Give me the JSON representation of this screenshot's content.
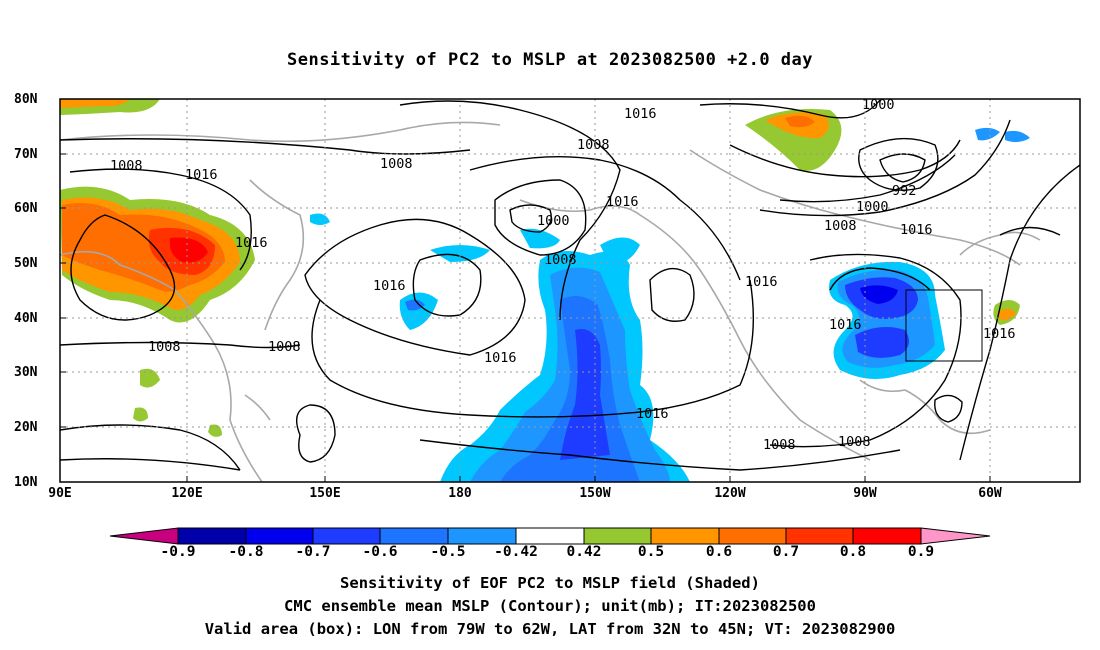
{
  "title": "Sensitivity of PC2 to MSLP at 2023082500 +2.0 day",
  "axes": {
    "lat_labels": [
      "80N",
      "70N",
      "60N",
      "50N",
      "40N",
      "30N",
      "20N",
      "10N"
    ],
    "lon_labels": [
      "90E",
      "120E",
      "150E",
      "180",
      "150W",
      "120W",
      "90W",
      "60W"
    ]
  },
  "colorbar": {
    "labels": [
      "-0.9",
      "-0.8",
      "-0.7",
      "-0.6",
      "-0.5",
      "-0.42",
      "0.42",
      "0.5",
      "0.6",
      "0.7",
      "0.8",
      "0.9"
    ],
    "colors": [
      "#c80080",
      "#0000aa",
      "#0000ee",
      "#1e3cff",
      "#1c74ff",
      "#1e96ff",
      "#00c8ff",
      "#ffffff",
      "#96c832",
      "#ff9600",
      "#ff6e00",
      "#ff3200",
      "#ff0000",
      "#ff96c8"
    ]
  },
  "contour_labels": {
    "1016": "1016",
    "1008": "1008",
    "1000": "1000",
    "992": "992"
  },
  "captions": {
    "line1": "Sensitivity of EOF PC2 to MSLP field (Shaded)",
    "line2": "CMC ensemble mean MSLP (Contour); unit(mb); IT:2023082500",
    "line3": "Valid area (box): LON from 79W to 62W, LAT from 32N to 45N; VT: 2023082900"
  },
  "valid_box": {
    "lon_min": "79W",
    "lon_max": "62W",
    "lat_min": "32N",
    "lat_max": "45N"
  }
}
